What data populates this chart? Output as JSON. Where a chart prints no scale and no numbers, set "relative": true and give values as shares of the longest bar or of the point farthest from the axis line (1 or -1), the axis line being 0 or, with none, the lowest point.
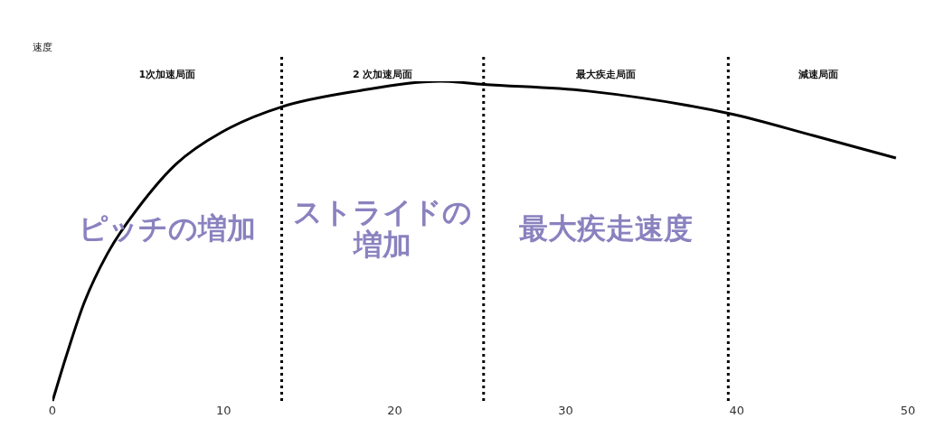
{
  "chart_data": {
    "type": "line",
    "relative": true,
    "ylabel": "速度",
    "color": "#000000",
    "marker": "none",
    "line_style": "solid",
    "grid": false,
    "legend": false,
    "x": [
      0,
      0.8,
      1.87,
      3.2,
      4.53,
      7.2,
      9.86,
      13.4,
      17.9,
      22.7,
      25.2,
      31.2,
      39.5,
      44.5,
      49.3
    ],
    "values": [
      0,
      0.14,
      0.31,
      0.46,
      0.57,
      0.74,
      0.84,
      0.92,
      0.97,
      1,
      0.99,
      0.97,
      0.9,
      0.83,
      0.76
    ],
    "xlim": [
      0,
      50
    ],
    "xticks": [
      0,
      10,
      20,
      30,
      40,
      50
    ],
    "ref_lines": [
      {
        "axis": "x",
        "value": 13.4,
        "color": "#000000",
        "line_style": "dotted"
      },
      {
        "axis": "x",
        "value": 25.2,
        "color": "#000000",
        "line_style": "dotted"
      },
      {
        "axis": "x",
        "value": 39.5,
        "color": "#000000",
        "line_style": "dotted"
      }
    ],
    "annotations": [
      "1次加速局面",
      "2 次加速局面",
      "最大疾走局面",
      "減速局面",
      "ピッチの増加",
      "ストライドの増加",
      "最大疾走速度"
    ]
  }
}
